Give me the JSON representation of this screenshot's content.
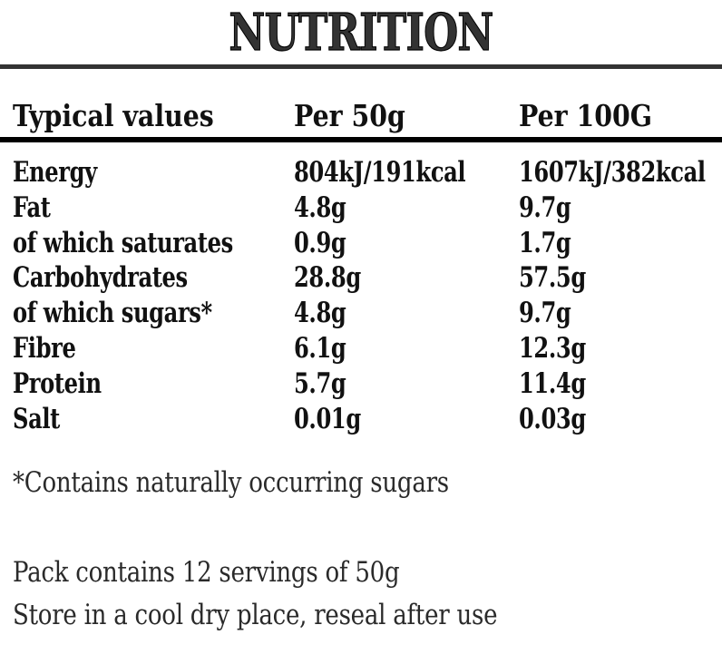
{
  "title": "NUTRITION",
  "table": {
    "headers": [
      "Typical values",
      "Per 50g",
      "Per 100G"
    ],
    "rows": [
      {
        "nutrient": "Energy",
        "per_50g": "804kJ/191kcal",
        "per_100g": "1607kJ/382kcal"
      },
      {
        "nutrient": "Fat",
        "per_50g": "4.8g",
        "per_100g": "9.7g"
      },
      {
        "nutrient": "of which saturates",
        "per_50g": "0.9g",
        "per_100g": "1.7g"
      },
      {
        "nutrient": "Carbohydrates",
        "per_50g": "28.8g",
        "per_100g": "57.5g"
      },
      {
        "nutrient": "of which sugars*",
        "per_50g": "4.8g",
        "per_100g": "9.7g"
      },
      {
        "nutrient": "Fibre",
        "per_50g": "6.1g",
        "per_100g": "12.3g"
      },
      {
        "nutrient": "Protein",
        "per_50g": "5.7g",
        "per_100g": "11.4g"
      },
      {
        "nutrient": "Salt",
        "per_50g": "0.01g",
        "per_100g": "0.03g"
      }
    ]
  },
  "footnote": "*Contains naturally occurring sugars",
  "pack_info": "Pack contains 12 servings of 50g",
  "storage": "Store in a cool dry place, reseal after use",
  "colors": {
    "title_fill": "#333333",
    "title_outline": "#000000",
    "top_rule": "#333333",
    "header_rule": "#000000",
    "body_text": "#111111",
    "footer_text": "#2a2a2a",
    "background": "#ffffff"
  }
}
